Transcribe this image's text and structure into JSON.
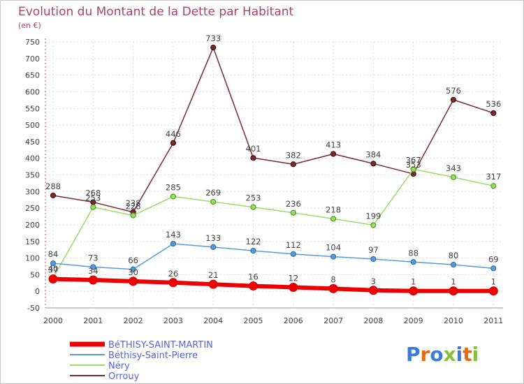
{
  "chart_data": {
    "type": "line",
    "title": "Evolution du Montant de la Dette par Habitant",
    "subtitle": "(en €)",
    "x": [
      "2000",
      "2001",
      "2002",
      "2003",
      "2004",
      "2005",
      "2006",
      "2007",
      "2008",
      "2009",
      "2010",
      "2011"
    ],
    "ylim": [
      -50,
      750
    ],
    "yticks": [
      -50,
      0,
      50,
      100,
      150,
      200,
      250,
      300,
      350,
      400,
      450,
      500,
      550,
      600,
      650,
      700,
      750
    ],
    "grid": true,
    "legend_position": "bottom-left",
    "series": [
      {
        "name": "BéTHISY-SAINT-MARTIN",
        "color": "#ee0000",
        "width": 6,
        "marker_r": 6,
        "values": [
          37,
          34,
          30,
          26,
          21,
          16,
          12,
          8,
          3,
          1,
          1,
          1
        ],
        "labels": [
          "37",
          "34",
          "30",
          "26",
          "21",
          "16",
          "12",
          "8",
          "3",
          "1",
          "1",
          "1"
        ]
      },
      {
        "name": "Béthisy-Saint-Pierre",
        "color": "#5a9bd5",
        "width": 1.5,
        "marker_r": 3.5,
        "values": [
          84,
          73,
          66,
          143,
          133,
          122,
          112,
          104,
          97,
          88,
          80,
          69
        ],
        "labels": [
          "84",
          "73",
          "66",
          "143",
          "133",
          "122",
          "112",
          "104",
          "97",
          "88",
          "80",
          "69"
        ]
      },
      {
        "name": "Néry",
        "color": "#99dd66",
        "width": 1.5,
        "marker_r": 3.5,
        "values": [
          40,
          253,
          228,
          285,
          269,
          253,
          236,
          218,
          199,
          367,
          343,
          317
        ],
        "labels": [
          "40",
          "253",
          "228",
          "285",
          "269",
          "253",
          "236",
          "218",
          "199",
          "367",
          "343",
          "317"
        ]
      },
      {
        "name": "Orrouy",
        "color": "#7a2a30",
        "width": 1.5,
        "marker_r": 3.5,
        "values": [
          288,
          268,
          238,
          446,
          733,
          401,
          382,
          413,
          384,
          353,
          576,
          536
        ],
        "labels": [
          "288",
          "268",
          "238",
          "446",
          "733",
          "401",
          "382",
          "413",
          "384",
          "353",
          "576",
          "536"
        ]
      }
    ]
  },
  "logo": {
    "text": "Proxiti",
    "colors": [
      "#3a7bd5",
      "#e86a10",
      "#3a7bd5",
      "#88c040",
      "#3a7bd5",
      "#e86a10",
      "#88c040"
    ]
  }
}
